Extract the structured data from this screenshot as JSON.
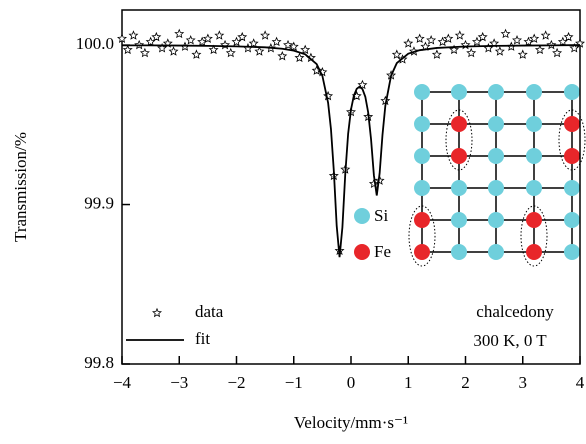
{
  "chart_data": {
    "type": "scatter",
    "xlabel": "Velocity/mm·s⁻¹",
    "ylabel": "Transmission/%",
    "xlim": [
      -4,
      4
    ],
    "ylim": [
      99.8,
      100.022
    ],
    "xticks": [
      {
        "value": -4,
        "label": "−4"
      },
      {
        "value": -3,
        "label": "−3"
      },
      {
        "value": -2,
        "label": "−2"
      },
      {
        "value": -1,
        "label": "−1"
      },
      0,
      1,
      2,
      3,
      4
    ],
    "yticks": [
      99.8,
      99.9,
      {
        "value": 100,
        "label": "100.0"
      }
    ],
    "legend": "lower left",
    "series": [
      {
        "name": "data",
        "type": "scatter",
        "color": "#000000",
        "x": [
          -4.0,
          -3.9,
          -3.8,
          -3.7,
          -3.6,
          -3.5,
          -3.4,
          -3.3,
          -3.2,
          -3.1,
          -3.0,
          -2.9,
          -2.8,
          -2.7,
          -2.6,
          -2.5,
          -2.4,
          -2.3,
          -2.2,
          -2.1,
          -2.0,
          -1.9,
          -1.8,
          -1.7,
          -1.6,
          -1.5,
          -1.4,
          -1.3,
          -1.2,
          -1.1,
          -1.0,
          -0.9,
          -0.8,
          -0.7,
          -0.6,
          -0.5,
          -0.4,
          -0.3,
          -0.2,
          -0.1,
          0.0,
          0.1,
          0.2,
          0.3,
          0.4,
          0.5,
          0.6,
          0.7,
          0.8,
          0.9,
          1.0,
          1.1,
          1.2,
          1.3,
          1.4,
          1.5,
          1.6,
          1.7,
          1.8,
          1.9,
          2.0,
          2.1,
          2.2,
          2.3,
          2.4,
          2.5,
          2.6,
          2.7,
          2.8,
          2.9,
          3.0,
          3.1,
          3.2,
          3.3,
          3.4,
          3.5,
          3.6,
          3.7,
          3.8,
          3.9,
          4.0
        ],
        "values": [
          100.004,
          99.997,
          100.006,
          100.0,
          99.995,
          100.002,
          100.005,
          99.998,
          100.001,
          99.996,
          100.007,
          99.999,
          100.003,
          99.994,
          100.002,
          100.004,
          99.997,
          100.006,
          100.0,
          99.995,
          100.002,
          100.005,
          99.998,
          100.001,
          99.996,
          100.006,
          99.998,
          100.002,
          99.993,
          100.0,
          99.999,
          99.992,
          99.997,
          99.992,
          99.984,
          99.983,
          99.968,
          99.918,
          99.871,
          99.922,
          99.958,
          99.968,
          99.975,
          99.955,
          99.913,
          99.915,
          99.965,
          99.981,
          99.994,
          99.991,
          100.001,
          99.996,
          100.004,
          99.999,
          100.003,
          99.994,
          100.002,
          100.004,
          99.997,
          100.006,
          100.0,
          99.995,
          100.002,
          100.005,
          99.998,
          100.001,
          99.996,
          100.007,
          99.999,
          100.003,
          99.994,
          100.002,
          100.004,
          99.997,
          100.006,
          100.0,
          99.995,
          100.002,
          100.005,
          99.998,
          100.001
        ]
      },
      {
        "name": "fit",
        "type": "line",
        "color": "#000000",
        "x": [
          -4,
          -3.5,
          -3,
          -2.5,
          -2,
          -1.5,
          -1.2,
          -1,
          -0.8,
          -0.6,
          -0.5,
          -0.4,
          -0.35,
          -0.3,
          -0.25,
          -0.2,
          -0.15,
          -0.1,
          -0.05,
          0,
          0.05,
          0.1,
          0.15,
          0.2,
          0.25,
          0.3,
          0.35,
          0.4,
          0.45,
          0.5,
          0.55,
          0.6,
          0.7,
          0.8,
          1,
          1.2,
          1.5,
          2,
          2.5,
          3,
          3.5,
          4
        ],
        "values": [
          99.9998,
          99.9998,
          99.9997,
          99.9995,
          99.9992,
          99.9986,
          99.9977,
          99.9965,
          99.9942,
          99.9881,
          99.9807,
          99.9638,
          99.9473,
          99.9211,
          99.8867,
          99.867,
          99.8858,
          99.9192,
          99.9444,
          99.9596,
          99.9683,
          99.9726,
          99.9739,
          99.9724,
          99.9676,
          99.9578,
          99.941,
          99.9183,
          99.9057,
          99.9196,
          99.9437,
          99.962,
          99.9808,
          99.9887,
          99.9946,
          99.9968,
          99.9982,
          99.9991,
          99.9995,
          99.9997,
          99.9998,
          100.0
        ]
      }
    ],
    "annotations": [
      "chalcedony",
      "300 K, 0 T"
    ],
    "inset_legend": [
      "Si",
      "Fe"
    ]
  }
}
